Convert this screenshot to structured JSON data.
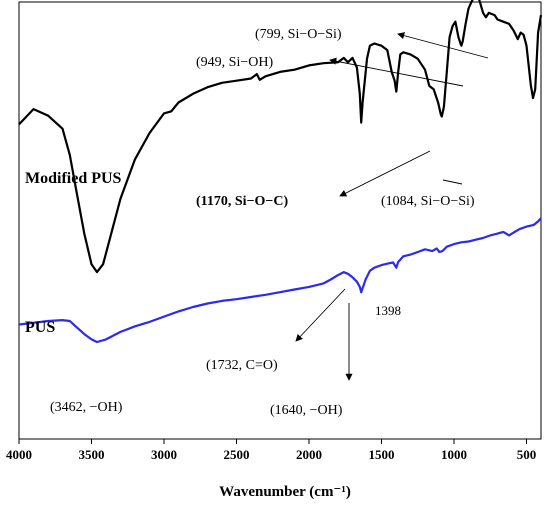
{
  "chart_data": {
    "type": "line",
    "xlabel": "Wavenumber (cm⁻¹)",
    "xlim": [
      4000,
      400
    ],
    "x_reversed": true,
    "x_ticks": [
      4000,
      3500,
      3000,
      2500,
      2000,
      1500,
      1000,
      500
    ],
    "y_ticks_shown": false,
    "grid": false,
    "series": [
      {
        "name": "Modified PUS",
        "color": "#000000",
        "points": [
          [
            4000,
            0.72
          ],
          [
            3900,
            0.755
          ],
          [
            3800,
            0.74
          ],
          [
            3700,
            0.71
          ],
          [
            3650,
            0.65
          ],
          [
            3600,
            0.56
          ],
          [
            3550,
            0.47
          ],
          [
            3500,
            0.4
          ],
          [
            3462,
            0.382
          ],
          [
            3420,
            0.4
          ],
          [
            3380,
            0.45
          ],
          [
            3300,
            0.55
          ],
          [
            3200,
            0.64
          ],
          [
            3100,
            0.7
          ],
          [
            3000,
            0.745
          ],
          [
            2950,
            0.75
          ],
          [
            2900,
            0.77
          ],
          [
            2800,
            0.79
          ],
          [
            2700,
            0.805
          ],
          [
            2600,
            0.815
          ],
          [
            2500,
            0.82
          ],
          [
            2400,
            0.825
          ],
          [
            2360,
            0.835
          ],
          [
            2340,
            0.822
          ],
          [
            2300,
            0.83
          ],
          [
            2200,
            0.84
          ],
          [
            2100,
            0.845
          ],
          [
            2000,
            0.855
          ],
          [
            1900,
            0.86
          ],
          [
            1800,
            0.862
          ],
          [
            1760,
            0.872
          ],
          [
            1732,
            0.862
          ],
          [
            1700,
            0.872
          ],
          [
            1670,
            0.85
          ],
          [
            1650,
            0.79
          ],
          [
            1640,
            0.724
          ],
          [
            1630,
            0.77
          ],
          [
            1600,
            0.87
          ],
          [
            1580,
            0.9
          ],
          [
            1550,
            0.905
          ],
          [
            1500,
            0.9
          ],
          [
            1460,
            0.89
          ],
          [
            1430,
            0.84
          ],
          [
            1410,
            0.82
          ],
          [
            1398,
            0.795
          ],
          [
            1385,
            0.84
          ],
          [
            1370,
            0.88
          ],
          [
            1350,
            0.885
          ],
          [
            1300,
            0.88
          ],
          [
            1250,
            0.87
          ],
          [
            1200,
            0.845
          ],
          [
            1170,
            0.808
          ],
          [
            1140,
            0.8
          ],
          [
            1110,
            0.77
          ],
          [
            1090,
            0.742
          ],
          [
            1084,
            0.738
          ],
          [
            1070,
            0.76
          ],
          [
            1050,
            0.84
          ],
          [
            1030,
            0.92
          ],
          [
            1010,
            0.945
          ],
          [
            990,
            0.955
          ],
          [
            970,
            0.92
          ],
          [
            955,
            0.905
          ],
          [
            949,
            0.9
          ],
          [
            940,
            0.91
          ],
          [
            920,
            0.95
          ],
          [
            900,
            0.985
          ],
          [
            880,
            1.0
          ],
          [
            850,
            1.02
          ],
          [
            830,
            1.01
          ],
          [
            799,
            0.975
          ],
          [
            780,
            0.965
          ],
          [
            760,
            0.975
          ],
          [
            720,
            0.97
          ],
          [
            700,
            0.96
          ],
          [
            660,
            0.955
          ],
          [
            620,
            0.95
          ],
          [
            590,
            0.935
          ],
          [
            560,
            0.915
          ],
          [
            540,
            0.93
          ],
          [
            520,
            0.925
          ],
          [
            500,
            0.9
          ],
          [
            470,
            0.81
          ],
          [
            455,
            0.78
          ],
          [
            440,
            0.8
          ],
          [
            420,
            0.93
          ],
          [
            400,
            0.97
          ]
        ]
      },
      {
        "name": "PUS",
        "color": "#2a2af2",
        "points": [
          [
            4000,
            0.262
          ],
          [
            3900,
            0.266
          ],
          [
            3800,
            0.27
          ],
          [
            3700,
            0.272
          ],
          [
            3650,
            0.27
          ],
          [
            3600,
            0.255
          ],
          [
            3550,
            0.24
          ],
          [
            3500,
            0.228
          ],
          [
            3462,
            0.222
          ],
          [
            3400,
            0.228
          ],
          [
            3300,
            0.245
          ],
          [
            3200,
            0.258
          ],
          [
            3100,
            0.268
          ],
          [
            3000,
            0.28
          ],
          [
            2900,
            0.292
          ],
          [
            2800,
            0.302
          ],
          [
            2700,
            0.31
          ],
          [
            2600,
            0.316
          ],
          [
            2500,
            0.32
          ],
          [
            2400,
            0.325
          ],
          [
            2300,
            0.33
          ],
          [
            2200,
            0.336
          ],
          [
            2100,
            0.342
          ],
          [
            2000,
            0.348
          ],
          [
            1900,
            0.356
          ],
          [
            1850,
            0.365
          ],
          [
            1800,
            0.375
          ],
          [
            1760,
            0.382
          ],
          [
            1732,
            0.378
          ],
          [
            1700,
            0.37
          ],
          [
            1670,
            0.36
          ],
          [
            1650,
            0.348
          ],
          [
            1640,
            0.336
          ],
          [
            1630,
            0.345
          ],
          [
            1610,
            0.365
          ],
          [
            1580,
            0.385
          ],
          [
            1550,
            0.392
          ],
          [
            1500,
            0.398
          ],
          [
            1450,
            0.402
          ],
          [
            1420,
            0.404
          ],
          [
            1398,
            0.392
          ],
          [
            1385,
            0.405
          ],
          [
            1350,
            0.418
          ],
          [
            1300,
            0.422
          ],
          [
            1250,
            0.428
          ],
          [
            1200,
            0.434
          ],
          [
            1150,
            0.43
          ],
          [
            1120,
            0.436
          ],
          [
            1100,
            0.428
          ],
          [
            1080,
            0.43
          ],
          [
            1050,
            0.44
          ],
          [
            1000,
            0.446
          ],
          [
            950,
            0.45
          ],
          [
            900,
            0.452
          ],
          [
            850,
            0.456
          ],
          [
            800,
            0.46
          ],
          [
            750,
            0.466
          ],
          [
            700,
            0.47
          ],
          [
            660,
            0.474
          ],
          [
            620,
            0.466
          ],
          [
            600,
            0.47
          ],
          [
            550,
            0.48
          ],
          [
            500,
            0.486
          ],
          [
            450,
            0.49
          ],
          [
            420,
            0.498
          ],
          [
            400,
            0.505
          ]
        ]
      }
    ],
    "series_labels": [
      {
        "text": "Modified PUS",
        "series": "Modified PUS"
      },
      {
        "text": "PUS",
        "series": "PUS"
      }
    ],
    "annotations": [
      {
        "text": "(799, Si−O−Si)",
        "bold": false
      },
      {
        "text": "(949, Si−OH)",
        "bold": false
      },
      {
        "text": "(1170, Si−O−C)",
        "bold": true
      },
      {
        "text": "(1084, Si−O−Si)",
        "bold": false
      },
      {
        "text": "1398",
        "bold": false
      },
      {
        "text": "(1732, C=O)",
        "bold": false
      },
      {
        "text": "(1640, −OH)",
        "bold": false
      },
      {
        "text": "(3462, −OH)",
        "bold": false
      }
    ]
  }
}
